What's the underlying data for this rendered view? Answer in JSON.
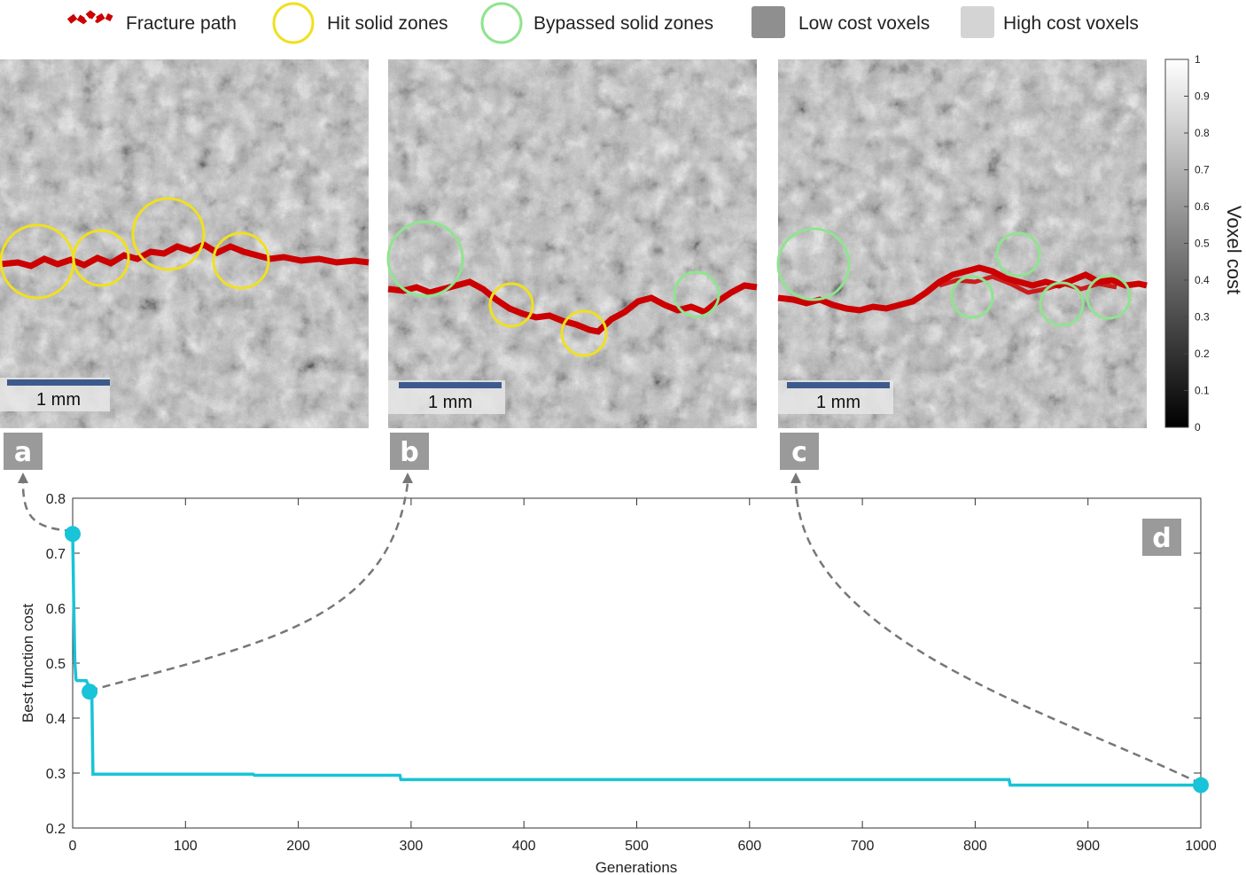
{
  "legend": {
    "items": [
      {
        "key": "fracture",
        "label": "Fracture path"
      },
      {
        "key": "hit",
        "label": "Hit solid zones"
      },
      {
        "key": "bypassed",
        "label": "Bypassed solid zones"
      },
      {
        "key": "low",
        "label": "Low cost voxels"
      },
      {
        "key": "high",
        "label": "High cost voxels"
      }
    ]
  },
  "panels": {
    "a": {
      "letter": "a",
      "scale_label": "1 mm"
    },
    "b": {
      "letter": "b",
      "scale_label": "1 mm"
    },
    "c": {
      "letter": "c",
      "scale_label": "1 mm"
    },
    "d": {
      "letter": "d"
    }
  },
  "colorbar": {
    "label": "Voxel cost",
    "ticks": [
      "0",
      "0.1",
      "0.2",
      "0.3",
      "0.4",
      "0.5",
      "0.6",
      "0.7",
      "0.8",
      "0.9",
      "1"
    ]
  },
  "colors": {
    "line": "#19c3d8",
    "fracture": "#cc0000",
    "hit": "#f0e020",
    "bypassed": "#8fe48f",
    "scalebar": "#3c5a8c",
    "letter_bg": "#9a9a9a"
  },
  "chart_data": {
    "type": "line",
    "xlabel": "Generations",
    "ylabel": "Best function cost",
    "xlim": [
      0,
      1000
    ],
    "ylim": [
      0.2,
      0.8
    ],
    "xticks": [
      "0",
      "100",
      "200",
      "300",
      "400",
      "500",
      "600",
      "700",
      "800",
      "900",
      "1000"
    ],
    "yticks": [
      "0.2",
      "0.3",
      "0.4",
      "0.5",
      "0.6",
      "0.7",
      "0.8"
    ],
    "series": [
      {
        "x": [
          0,
          1,
          2,
          3,
          4,
          12,
          14,
          15,
          17,
          18,
          160,
          161,
          290,
          291,
          830,
          831,
          1000
        ],
        "y": [
          0.735,
          0.6,
          0.5,
          0.47,
          0.468,
          0.468,
          0.46,
          0.448,
          0.448,
          0.298,
          0.298,
          0.296,
          0.296,
          0.288,
          0.288,
          0.278,
          0.278
        ]
      }
    ],
    "markers": [
      {
        "x": 0,
        "y": 0.735,
        "panel": "a"
      },
      {
        "x": 15,
        "y": 0.448,
        "panel": "b"
      },
      {
        "x": 1000,
        "y": 0.278,
        "panel": "c"
      }
    ]
  }
}
